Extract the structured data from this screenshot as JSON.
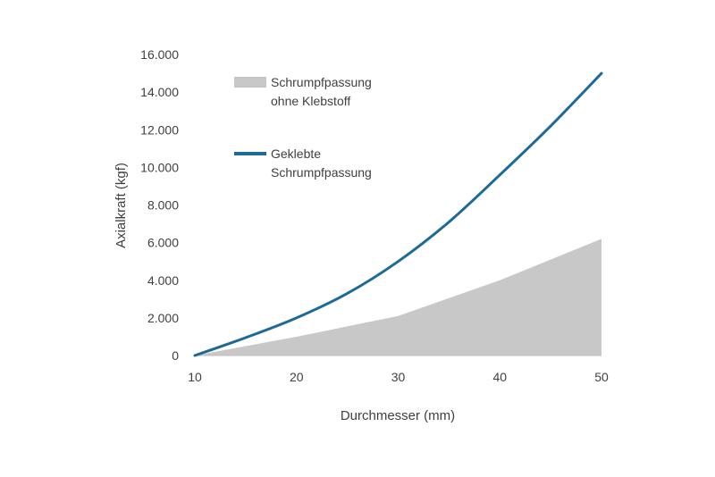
{
  "chart_data": {
    "type": "area",
    "xlabel": "Durchmesser (mm)",
    "ylabel": "Axialkraft (kgf)",
    "xlim": [
      10,
      50
    ],
    "ylim": [
      0,
      16000
    ],
    "x_ticks": [
      "10",
      "20",
      "30",
      "40",
      "50"
    ],
    "y_ticks": [
      "0",
      "2.000",
      "4.000",
      "6.000",
      "8.000",
      "10.000",
      "12.000",
      "14.000",
      "16.000"
    ],
    "grid": false,
    "legend_position": "top-left",
    "series": [
      {
        "name": "Schrumpfpassung ohne Klebstoff",
        "name_lines": [
          "Schrumpfpassung",
          "ohne Klebstoff"
        ],
        "type": "area",
        "color": "#c8c8c8",
        "x": [
          10,
          20,
          30,
          40,
          50
        ],
        "y": [
          0,
          1000,
          2100,
          4000,
          6200
        ]
      },
      {
        "name": "Geklebte Schrumpfpassung",
        "name_lines": [
          "Geklebte",
          "Schrumpfpassung"
        ],
        "type": "line",
        "color": "#1d6a96",
        "x": [
          10,
          15,
          20,
          25,
          30,
          35,
          40,
          45,
          50
        ],
        "y": [
          0,
          950,
          2000,
          3300,
          5000,
          7100,
          9600,
          12200,
          15000
        ]
      }
    ]
  }
}
